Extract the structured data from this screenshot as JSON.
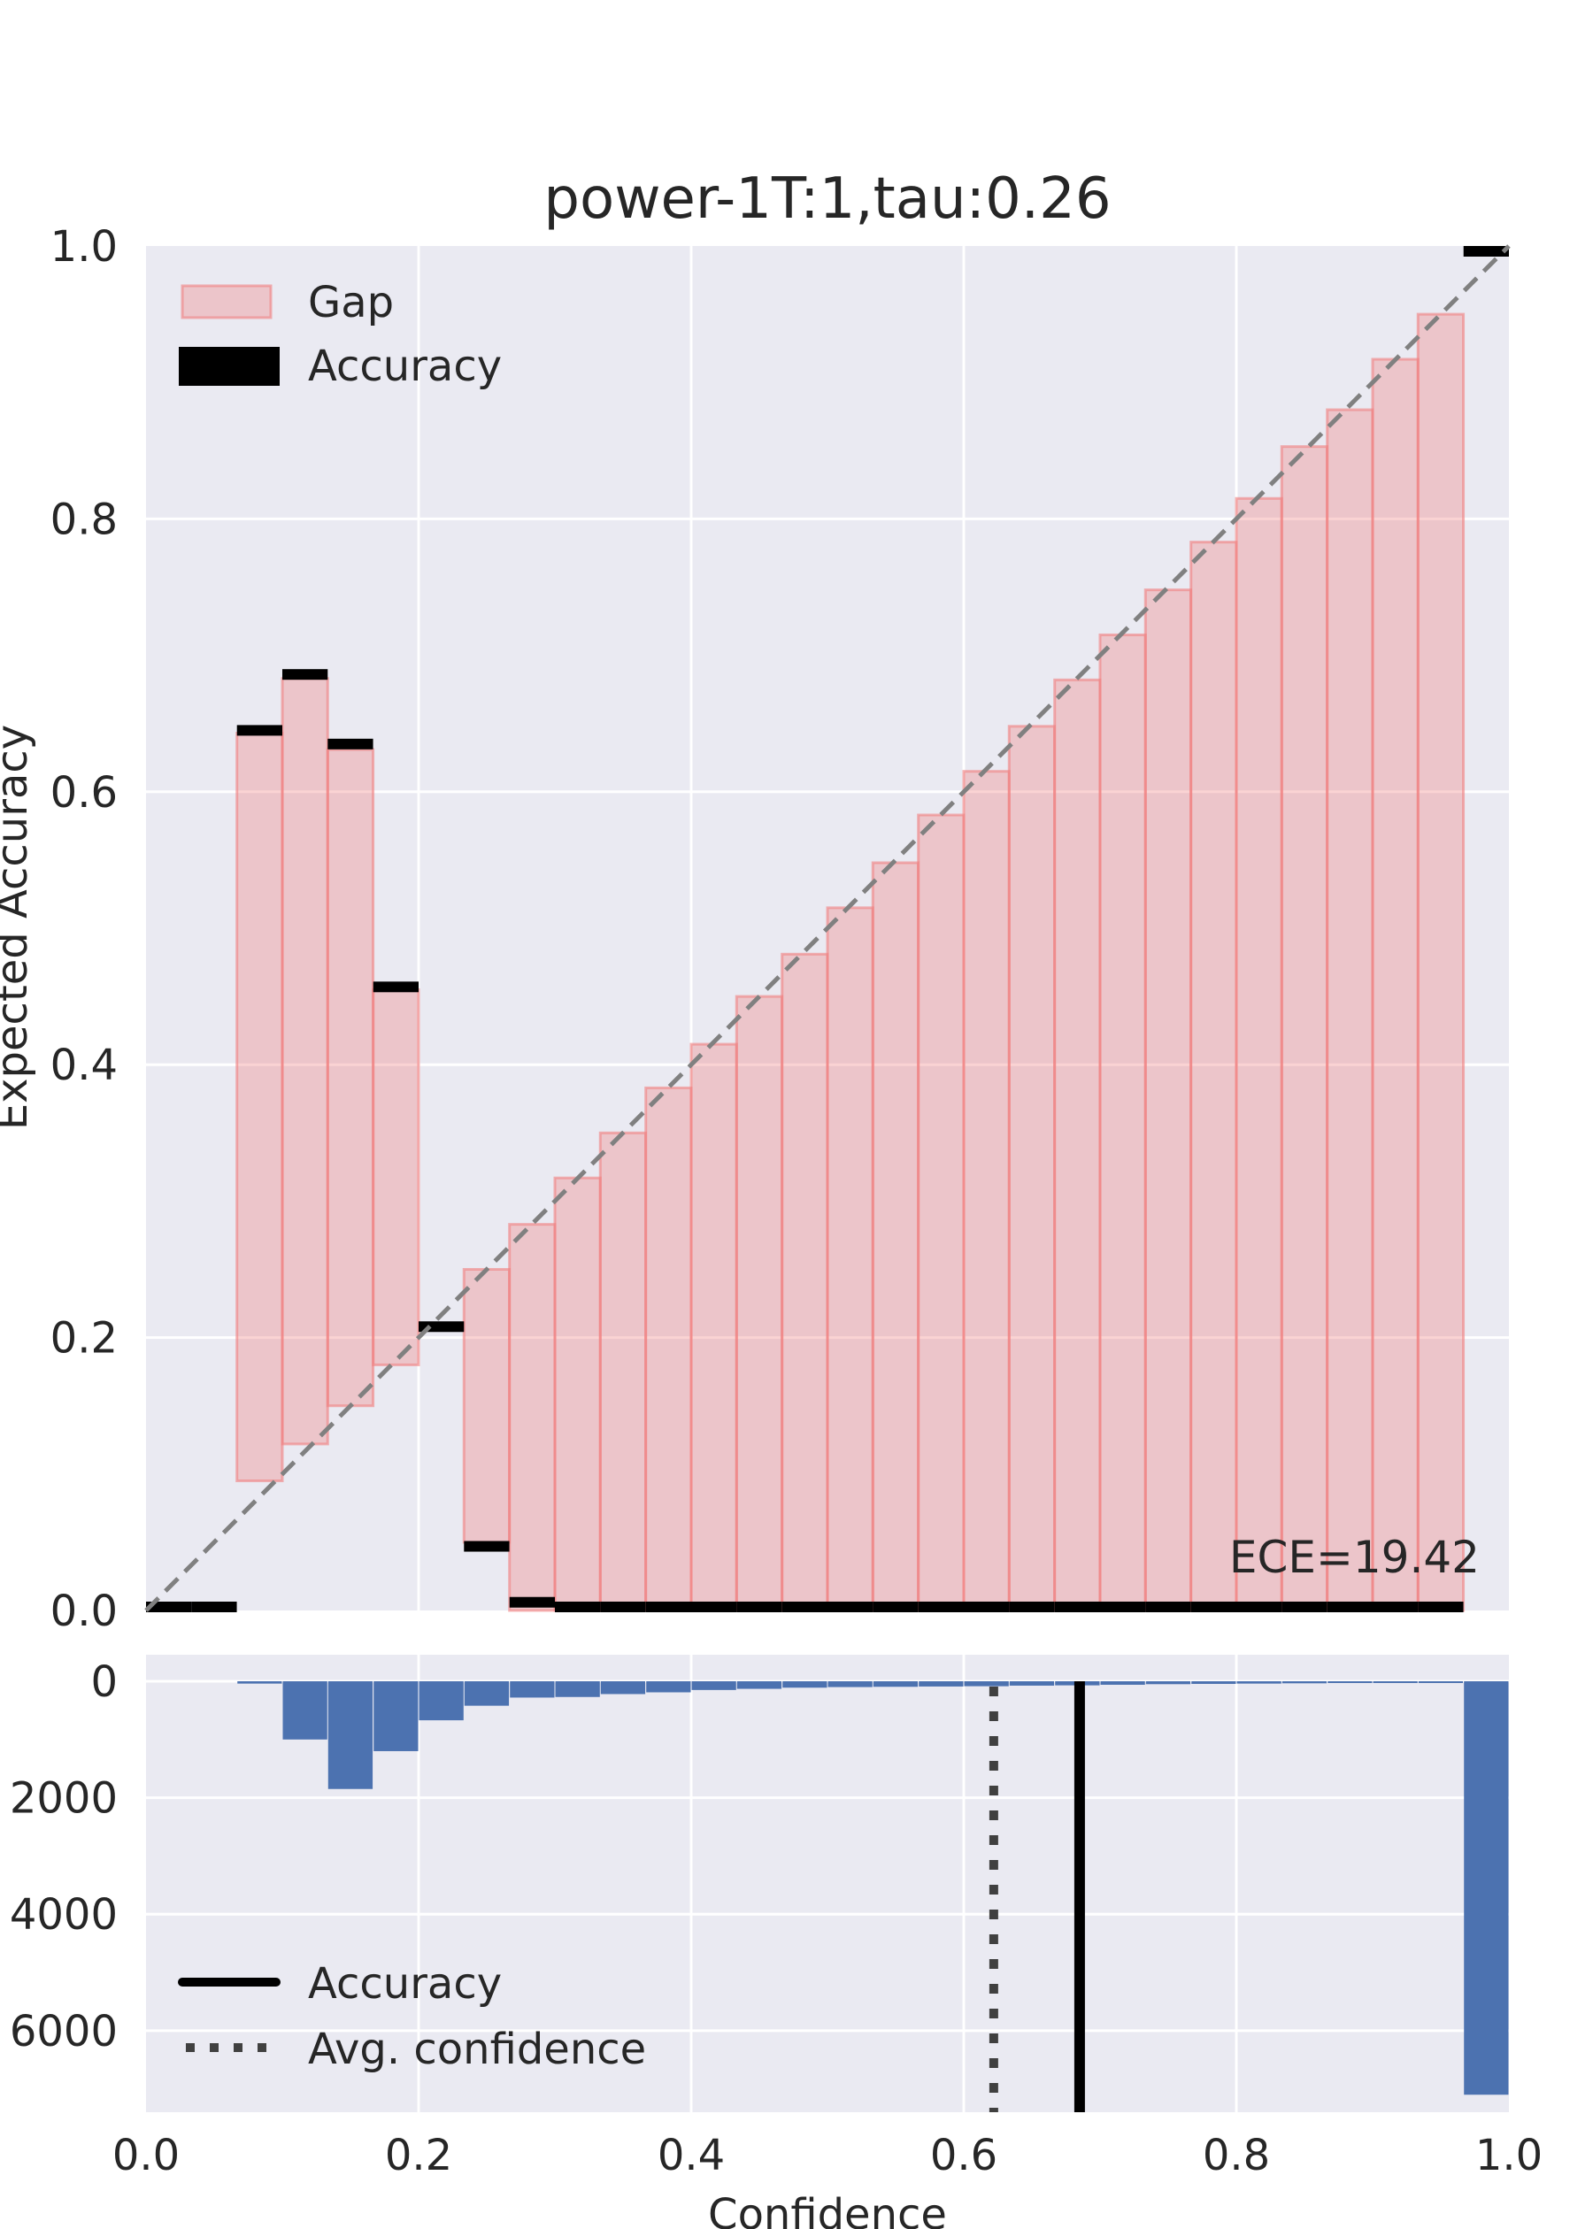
{
  "chart_data": [
    {
      "type": "bar",
      "panel": "reliability-diagram",
      "title": "power-1T:1,tau:0.26",
      "xlabel": "",
      "ylabel": "Expected Accuracy",
      "xlim": [
        0.0,
        1.0
      ],
      "ylim": [
        0.0,
        1.0
      ],
      "xticks": [
        "0.0",
        "0.2",
        "0.4",
        "0.6",
        "0.8",
        "1.0"
      ],
      "yticks": [
        "0.0",
        "0.2",
        "0.4",
        "0.6",
        "0.8",
        "1.0"
      ],
      "grid": true,
      "bin_width": 0.0333,
      "bin_starts": [
        0.0,
        0.0333,
        0.0667,
        0.1,
        0.1333,
        0.1667,
        0.2,
        0.2333,
        0.2667,
        0.3,
        0.3333,
        0.3667,
        0.4,
        0.4333,
        0.4667,
        0.5,
        0.5333,
        0.5667,
        0.6,
        0.6333,
        0.6667,
        0.7,
        0.7333,
        0.7667,
        0.8,
        0.8333,
        0.8667,
        0.9,
        0.9333,
        0.9667
      ],
      "series": [
        {
          "name": "Gap",
          "gap_low": [
            null,
            null,
            0.095,
            0.122,
            0.15,
            0.18,
            null,
            0.05,
            0.0,
            0.0,
            0.0,
            0.0,
            0.0,
            0.0,
            0.0,
            0.0,
            0.0,
            0.0,
            0.0,
            0.0,
            0.0,
            0.0,
            0.0,
            0.0,
            0.0,
            0.0,
            0.0,
            0.0,
            0.0,
            0.0
          ],
          "gap_high": [
            null,
            null,
            0.643,
            0.683,
            0.631,
            0.455,
            null,
            0.25,
            0.283,
            0.317,
            0.35,
            0.383,
            0.415,
            0.45,
            0.481,
            0.515,
            0.548,
            0.583,
            0.615,
            0.648,
            0.682,
            0.715,
            0.748,
            0.783,
            0.815,
            0.853,
            0.88,
            0.917,
            0.95,
            null
          ]
        },
        {
          "name": "Accuracy",
          "values": [
            0.0,
            0.0,
            0.645,
            0.686,
            0.635,
            0.457,
            0.208,
            0.047,
            0.006,
            0.0,
            0.0,
            0.0,
            0.0,
            0.0,
            0.0,
            0.0,
            0.0,
            0.0,
            0.0,
            0.0,
            0.0,
            0.0,
            0.0,
            0.0,
            0.0,
            0.0,
            0.0,
            0.0,
            0.0,
            1.0
          ]
        }
      ],
      "diagonal": {
        "from": [
          0,
          0
        ],
        "to": [
          1,
          1
        ],
        "style": "dashed",
        "color": "#808080"
      },
      "annotation": "ECE=19.42",
      "legend": {
        "placement": "top-left",
        "entries": [
          "Gap",
          "Accuracy"
        ]
      },
      "colors": {
        "gap": "#f08080",
        "accuracy": "#000000",
        "background": "#eaeaf2",
        "grid": "#ffffff"
      }
    },
    {
      "type": "bar",
      "panel": "confidence-histogram",
      "xlabel": "Confidence",
      "ylabel": "",
      "xlim": [
        0.0,
        1.0
      ],
      "ylim": [
        0,
        7400
      ],
      "y_inverted": true,
      "xticks": [
        "0.0",
        "0.2",
        "0.4",
        "0.6",
        "0.8",
        "1.0"
      ],
      "yticks": [
        "0",
        "2000",
        "4000",
        "6000"
      ],
      "grid": true,
      "bin_starts": [
        0.0,
        0.0333,
        0.0667,
        0.1,
        0.1333,
        0.1667,
        0.2,
        0.2333,
        0.2667,
        0.3,
        0.3333,
        0.3667,
        0.4,
        0.4333,
        0.4667,
        0.5,
        0.5333,
        0.5667,
        0.6,
        0.6333,
        0.6667,
        0.7,
        0.7333,
        0.7667,
        0.8,
        0.8333,
        0.8667,
        0.9,
        0.9333,
        0.9667
      ],
      "counts": [
        0,
        0,
        40,
        1000,
        1850,
        1200,
        670,
        420,
        280,
        270,
        220,
        190,
        150,
        130,
        110,
        100,
        95,
        90,
        85,
        75,
        70,
        60,
        50,
        45,
        40,
        35,
        30,
        25,
        20,
        7100
      ],
      "lines": [
        {
          "name": "Accuracy",
          "x": 0.685,
          "style": "solid",
          "color": "#000000"
        },
        {
          "name": "Avg. confidence",
          "x": 0.622,
          "style": "dotted",
          "color": "#404040"
        }
      ],
      "legend": {
        "placement": "bottom-left",
        "entries": [
          "Accuracy",
          "Avg. confidence"
        ]
      },
      "colors": {
        "bars": "#4c72b0",
        "background": "#eaeaf2",
        "grid": "#ffffff"
      }
    }
  ]
}
